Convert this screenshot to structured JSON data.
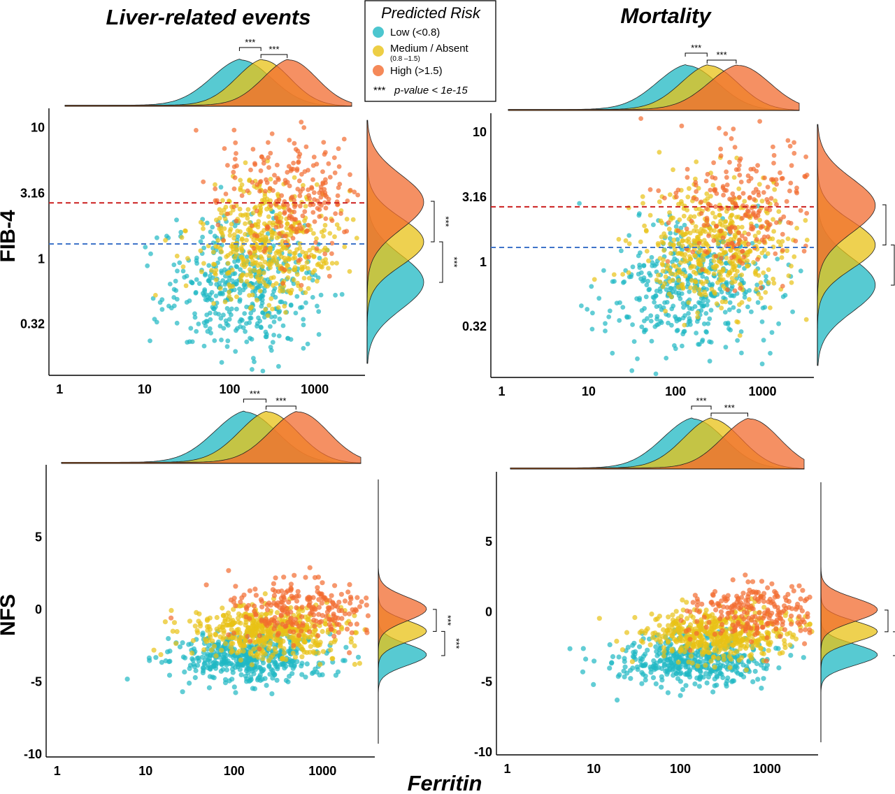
{
  "colors": {
    "low": "#1fb8c3",
    "medium": "#e8c216",
    "high": "#f26b2f",
    "fib_upper_cutoff": "#cc1f1f",
    "fib_lower_cutoff": "#3f74c9"
  },
  "figure": {
    "x_axis_title": "Ferritin",
    "col_titles": [
      "Liver-related events",
      "Mortality"
    ],
    "row_ylabels": [
      "FIB-4",
      "NFS"
    ]
  },
  "legend": {
    "title": "Predicted Risk",
    "items": [
      {
        "key": "low",
        "label": "Low (<0.8)",
        "sublabel": ""
      },
      {
        "key": "medium",
        "label": "Medium / Absent",
        "sublabel": "(0.8 –1.5)"
      },
      {
        "key": "high",
        "label": "High (>1.5)",
        "sublabel": ""
      }
    ],
    "note_stars": "***",
    "note_text": "p-value < 1e-15"
  },
  "chart_data": [
    {
      "type": "scatter",
      "title": "Liver-related events",
      "xlabel": "Ferritin",
      "ylabel": "FIB-4",
      "x_scale": "log",
      "y_scale": "log",
      "xticks": [
        "1",
        "10",
        "100",
        "1000"
      ],
      "yticks": [
        "0.32",
        "1",
        "3.16",
        "10"
      ],
      "xlim": [
        0.75,
        3900
      ],
      "ylim": [
        0.13,
        14
      ],
      "cutoffs": [
        2.67,
        1.3
      ],
      "series": [
        {
          "name": "Low (<0.8)",
          "x_mode": 140,
          "x_spread": 0.45,
          "y_mode": 0.62,
          "y_spread": 0.25
        },
        {
          "name": "Medium / Absent",
          "x_mode": 270,
          "x_spread": 0.4,
          "y_mode": 1.35,
          "y_spread": 0.22
        },
        {
          "name": "High (>1.5)",
          "x_mode": 600,
          "x_spread": 0.4,
          "y_mode": 2.9,
          "y_spread": 0.25
        }
      ],
      "x_significance": [
        "***",
        "***"
      ],
      "y_significance": [
        "***",
        "***"
      ]
    },
    {
      "type": "scatter",
      "title": "Mortality",
      "xlabel": "Ferritin",
      "ylabel": "FIB-4",
      "x_scale": "log",
      "y_scale": "log",
      "xticks": [
        "1",
        "10",
        "100",
        "1000"
      ],
      "yticks": [
        "0.32",
        "1",
        "3.16",
        "10"
      ],
      "xlim": [
        0.75,
        3900
      ],
      "ylim": [
        0.13,
        14
      ],
      "cutoffs": [
        2.67,
        1.3
      ],
      "series": [
        {
          "name": "Low (<0.8)",
          "x_mode": 140,
          "x_spread": 0.45,
          "y_mode": 0.62,
          "y_spread": 0.25
        },
        {
          "name": "Medium / Absent",
          "x_mode": 270,
          "x_spread": 0.42,
          "y_mode": 1.35,
          "y_spread": 0.22
        },
        {
          "name": "High (>1.5)",
          "x_mode": 650,
          "x_spread": 0.45,
          "y_mode": 2.9,
          "y_spread": 0.25
        }
      ],
      "x_significance": [
        "***",
        "***"
      ],
      "y_significance": [
        "***",
        "***"
      ]
    },
    {
      "type": "scatter",
      "title": "Liver-related events",
      "xlabel": "Ferritin",
      "ylabel": "NFS",
      "x_scale": "log",
      "y_scale": "linear",
      "xticks": [
        "1",
        "10",
        "100",
        "1000"
      ],
      "yticks": [
        "-10",
        "-5",
        "0",
        "5"
      ],
      "xlim": [
        0.75,
        3900
      ],
      "ylim": [
        -10.2,
        10
      ],
      "cutoffs": [],
      "series": [
        {
          "name": "Low (<0.8)",
          "x_mode": 140,
          "x_spread": 0.45,
          "y_mode": -3.4,
          "y_spread": 0.9
        },
        {
          "name": "Medium / Absent",
          "x_mode": 270,
          "x_spread": 0.42,
          "y_mode": -1.6,
          "y_spread": 0.9
        },
        {
          "name": "High (>1.5)",
          "x_mode": 650,
          "x_spread": 0.42,
          "y_mode": 0.1,
          "y_spread": 1.0
        }
      ],
      "x_significance": [
        "***",
        "***"
      ],
      "y_significance": [
        "***",
        "***"
      ]
    },
    {
      "type": "scatter",
      "title": "Mortality",
      "xlabel": "Ferritin",
      "ylabel": "NFS",
      "x_scale": "log",
      "y_scale": "linear",
      "xticks": [
        "1",
        "10",
        "100",
        "1000"
      ],
      "yticks": [
        "-10",
        "-5",
        "0",
        "5"
      ],
      "xlim": [
        0.75,
        3900
      ],
      "ylim": [
        -10.2,
        10
      ],
      "cutoffs": [],
      "series": [
        {
          "name": "Low (<0.8)",
          "x_mode": 150,
          "x_spread": 0.45,
          "y_mode": -3.4,
          "y_spread": 0.9
        },
        {
          "name": "Medium / Absent",
          "x_mode": 260,
          "x_spread": 0.42,
          "y_mode": -1.6,
          "y_spread": 0.9
        },
        {
          "name": "High (>1.5)",
          "x_mode": 800,
          "x_spread": 0.42,
          "y_mode": 0.1,
          "y_spread": 1.0
        }
      ],
      "x_significance": [
        "***",
        "***"
      ],
      "y_significance": [
        "***",
        "***"
      ]
    }
  ]
}
